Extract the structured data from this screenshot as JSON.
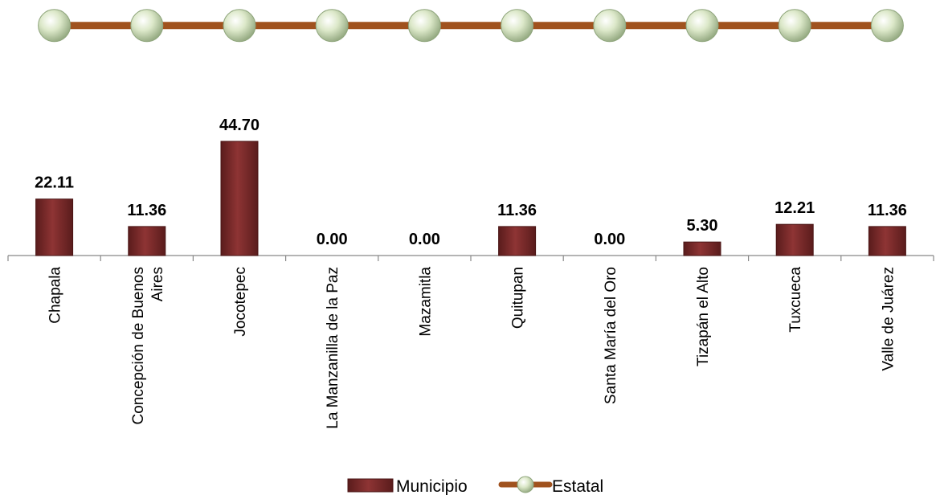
{
  "chart_data": {
    "type": "bar",
    "categories": [
      "Chapala",
      "Concepción de Buenos Aires",
      "Jocotepec",
      "La Manzanilla de la Paz",
      "Mazamitla",
      "Quitupan",
      "Santa María del Oro",
      "Tizapán el Alto",
      "Tuxcueca",
      "Valle de Juárez"
    ],
    "category_lines": [
      [
        "Chapala"
      ],
      [
        "Concepción de Buenos",
        "Aires"
      ],
      [
        "Jocotepec"
      ],
      [
        "La Manzanilla de la Paz"
      ],
      [
        "Mazamitla"
      ],
      [
        "Quitupan"
      ],
      [
        "Santa María del Oro"
      ],
      [
        "Tizapán el Alto"
      ],
      [
        "Tuxcueca"
      ],
      [
        "Valle de Juárez"
      ]
    ],
    "series": [
      {
        "name": "Municipio",
        "kind": "bar",
        "color": "#7b2a2a",
        "values": [
          22.11,
          11.36,
          44.7,
          0.0,
          0.0,
          11.36,
          0.0,
          5.3,
          12.21,
          11.36
        ],
        "labels": [
          "22.11",
          "11.36",
          "44.70",
          "0.00",
          "0.00",
          "11.36",
          "0.00",
          "5.30",
          "12.21",
          "11.36"
        ]
      },
      {
        "name": "Estatal",
        "kind": "line",
        "color": "#a0521e",
        "marker_color": "#cfe0b8",
        "values": [
          90.0,
          90.0,
          90.0,
          90.0,
          90.0,
          90.0,
          90.0,
          90.0,
          90.0,
          90.0
        ]
      }
    ],
    "ylim": [
      0,
      100
    ],
    "grid": false,
    "legend": "bottom-center"
  }
}
